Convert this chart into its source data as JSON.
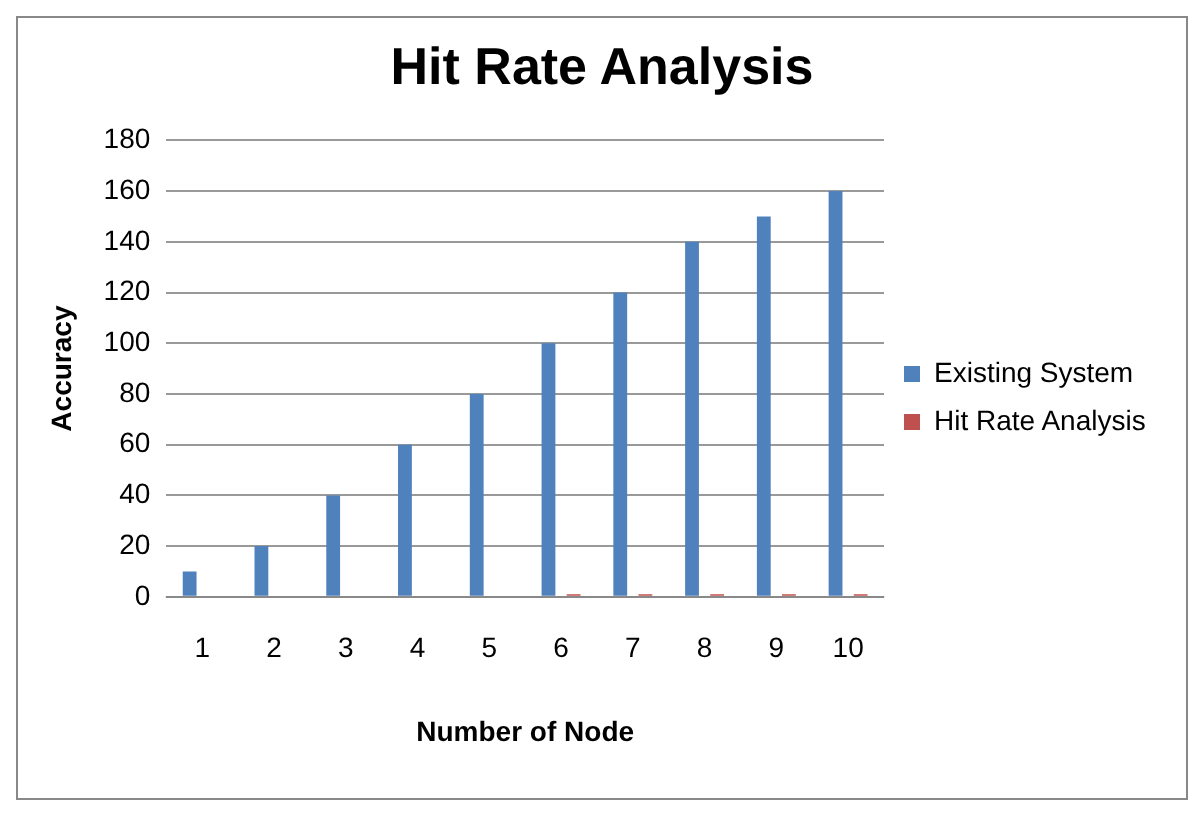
{
  "chart_data": {
    "type": "bar",
    "title": "Hit Rate Analysis",
    "xlabel": "Number of Node",
    "ylabel": "Accuracy",
    "categories": [
      "1",
      "2",
      "3",
      "4",
      "5",
      "6",
      "7",
      "8",
      "9",
      "10"
    ],
    "series": [
      {
        "name": "Existing System",
        "color": "#4f81bd",
        "values": [
          10,
          20,
          40,
          60,
          80,
          100,
          120,
          140,
          150,
          160
        ]
      },
      {
        "name": "Hit Rate Analysis",
        "color": "#c0504d",
        "values": [
          0,
          0,
          0,
          0,
          0,
          1,
          1,
          1,
          1,
          1
        ]
      }
    ],
    "ylim": [
      0,
      180
    ],
    "yticks": [
      0,
      20,
      40,
      60,
      80,
      100,
      120,
      140,
      160,
      180
    ],
    "grid": "y",
    "legend": "right"
  }
}
